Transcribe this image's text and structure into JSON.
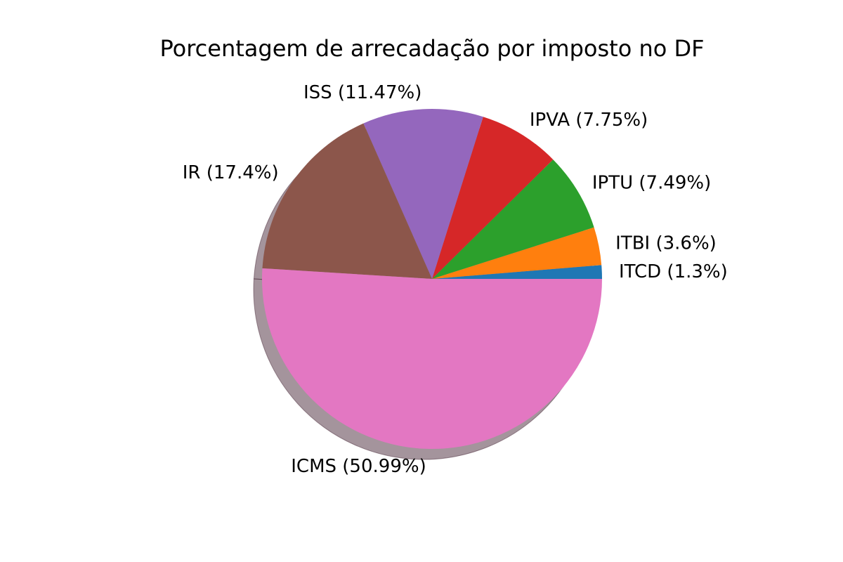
{
  "chart_data": {
    "type": "pie",
    "title": "Porcentagem de arrecadação por imposto no DF",
    "shadow": true,
    "start_angle_deg": 0,
    "direction": "counterclockwise",
    "slices": [
      {
        "label": "ITCD (1.3%)",
        "value": 1.3,
        "color": "#1f77b4"
      },
      {
        "label": "ITBI (3.6%)",
        "value": 3.6,
        "color": "#ff7f0e"
      },
      {
        "label": "IPTU (7.49%)",
        "value": 7.49,
        "color": "#2ca02c"
      },
      {
        "label": "IPVA (7.75%)",
        "value": 7.75,
        "color": "#d62728"
      },
      {
        "label": "ISS (11.47%)",
        "value": 11.47,
        "color": "#9467bd"
      },
      {
        "label": "IR (17.4%)",
        "value": 17.4,
        "color": "#8c564b"
      },
      {
        "label": "ICMS (50.99%)",
        "value": 50.99,
        "color": "#e377c2"
      }
    ]
  }
}
